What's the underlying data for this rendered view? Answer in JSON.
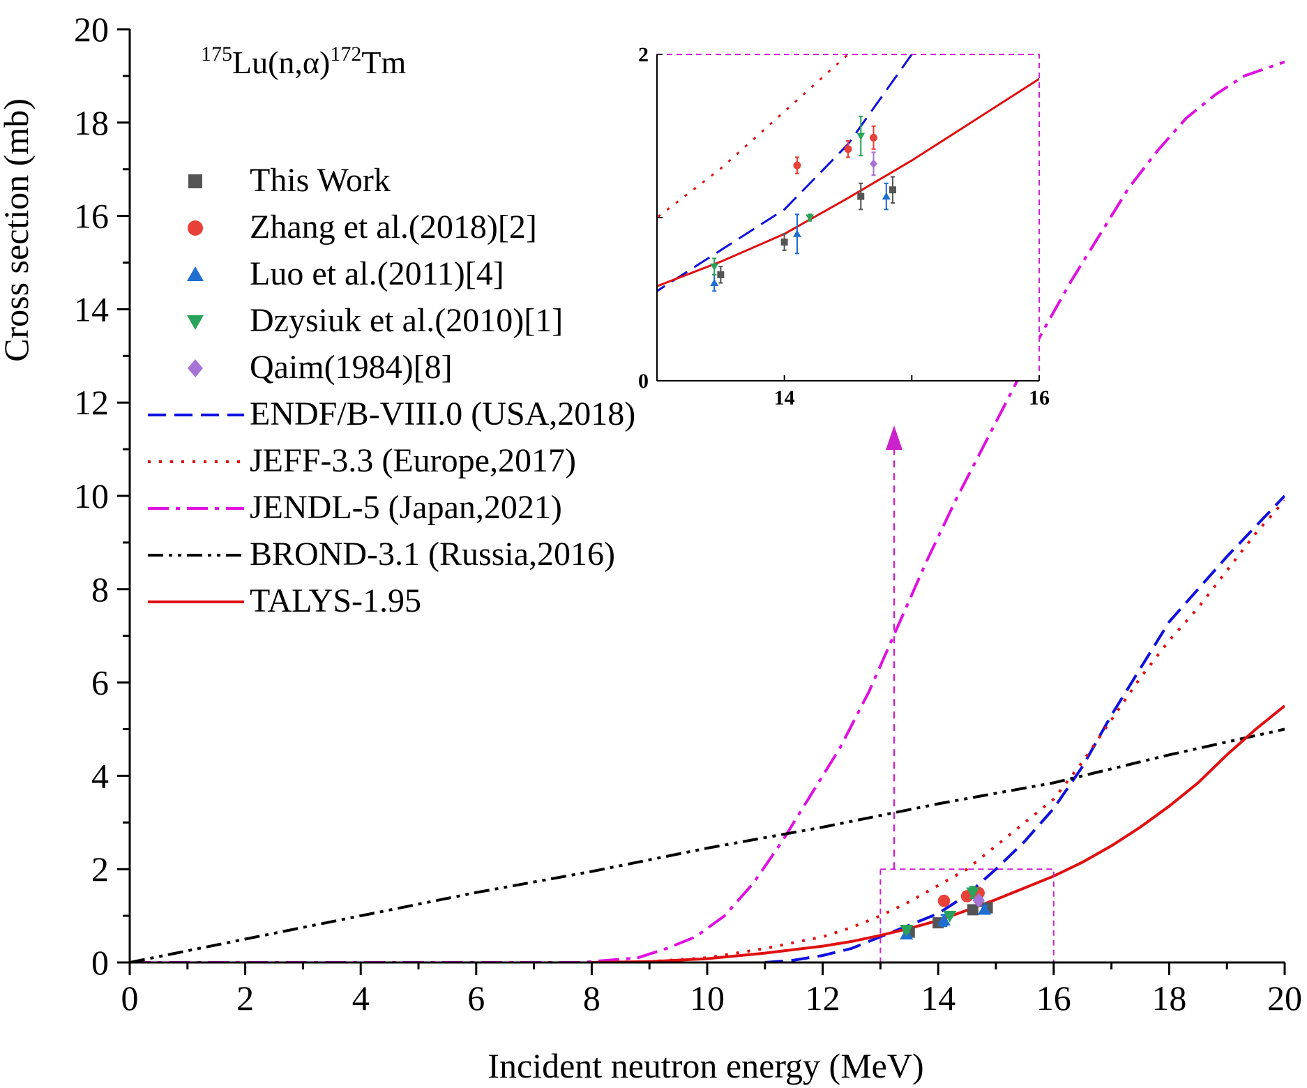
{
  "chart_data": {
    "type": "line",
    "title_parts": {
      "pre_sup": "175",
      "mid1": "Lu(n,",
      "greek": "α",
      "mid2": ")",
      "post_sup": "172",
      "end": "Tm"
    },
    "xlabel": "Incident neutron energy (MeV)",
    "ylabel": "Cross section (mb)",
    "xlim": [
      0,
      20
    ],
    "ylim": [
      0,
      20
    ],
    "x_ticks": [
      0,
      2,
      4,
      6,
      8,
      10,
      12,
      14,
      16,
      18,
      20
    ],
    "y_ticks": [
      0,
      2,
      4,
      6,
      8,
      10,
      12,
      14,
      16,
      18,
      20
    ],
    "colors": {
      "this_work": "#555555",
      "zhang": "#e8413a",
      "luo": "#1f6fd1",
      "dzysiuk": "#2aa35a",
      "qaim": "#a873d6",
      "endf": "#1010e0",
      "jeff": "#e01010",
      "jendl": "#e010e0",
      "brond": "#000000",
      "talys": "#e01010",
      "zoom_box": "#cc22cc"
    },
    "legend": [
      {
        "key": "this_work",
        "label": "This Work",
        "kind": "square"
      },
      {
        "key": "zhang",
        "label": "Zhang et al.(2018)[2]",
        "kind": "circle"
      },
      {
        "key": "luo",
        "label": "Luo et al.(2011)[4]",
        "kind": "triangle-up"
      },
      {
        "key": "dzysiuk",
        "label": "Dzysiuk et al.(2010)[1]",
        "kind": "triangle-down"
      },
      {
        "key": "qaim",
        "label": "Qaim(1984)[8]",
        "kind": "diamond"
      },
      {
        "key": "endf",
        "label": "ENDF/B-VIII.0 (USA,2018)",
        "kind": "line",
        "dash": "dash"
      },
      {
        "key": "jeff",
        "label": "JEFF-3.3 (Europe,2017)",
        "kind": "line",
        "dash": "dot"
      },
      {
        "key": "jendl",
        "label": "JENDL-5 (Japan,2021)",
        "kind": "line",
        "dash": "dashdot"
      },
      {
        "key": "brond",
        "label": "BROND-3.1 (Russia,2016)",
        "kind": "line",
        "dash": "dashdotdot"
      },
      {
        "key": "talys",
        "label": "TALYS-1.95",
        "kind": "line",
        "dash": "solid"
      }
    ],
    "series": [
      {
        "key": "endf",
        "name": "ENDF/B-VIII.0 (USA,2018)",
        "points": [
          [
            11,
            0
          ],
          [
            11.5,
            0.05
          ],
          [
            12,
            0.15
          ],
          [
            12.5,
            0.3
          ],
          [
            13,
            0.55
          ],
          [
            13.5,
            0.8
          ],
          [
            14,
            1.05
          ],
          [
            14.5,
            1.45
          ],
          [
            15,
            2.0
          ],
          [
            15.5,
            2.6
          ],
          [
            16,
            3.3
          ],
          [
            16.5,
            4.2
          ],
          [
            17,
            5.3
          ],
          [
            17.5,
            6.3
          ],
          [
            18,
            7.3
          ],
          [
            18.5,
            8.0
          ],
          [
            19,
            8.7
          ],
          [
            19.5,
            9.35
          ],
          [
            20,
            10.0
          ]
        ]
      },
      {
        "key": "jeff",
        "name": "JEFF-3.3 (Europe,2017)",
        "points": [
          [
            8,
            0
          ],
          [
            9,
            0.02
          ],
          [
            10,
            0.1
          ],
          [
            11,
            0.3
          ],
          [
            12,
            0.55
          ],
          [
            12.5,
            0.75
          ],
          [
            13,
            1.0
          ],
          [
            13.5,
            1.3
          ],
          [
            14,
            1.65
          ],
          [
            14.5,
            2.0
          ],
          [
            15,
            2.5
          ],
          [
            15.5,
            3.0
          ],
          [
            16,
            3.5
          ],
          [
            16.5,
            4.3
          ],
          [
            17,
            5.2
          ],
          [
            17.5,
            6.1
          ],
          [
            18,
            6.9
          ],
          [
            18.5,
            7.6
          ],
          [
            19,
            8.4
          ],
          [
            19.5,
            9.2
          ],
          [
            20,
            9.9
          ]
        ]
      },
      {
        "key": "jendl",
        "name": "JENDL-5 (Japan,2021)",
        "points": [
          [
            0,
            0
          ],
          [
            7.8,
            0
          ],
          [
            8.3,
            0.05
          ],
          [
            8.8,
            0.1
          ],
          [
            9.3,
            0.3
          ],
          [
            9.8,
            0.55
          ],
          [
            10.3,
            1.0
          ],
          [
            10.8,
            1.7
          ],
          [
            11.3,
            2.6
          ],
          [
            11.8,
            3.6
          ],
          [
            12.3,
            4.6
          ],
          [
            12.8,
            5.8
          ],
          [
            13.3,
            7.2
          ],
          [
            13.8,
            8.6
          ],
          [
            14.3,
            9.9
          ],
          [
            14.8,
            11.1
          ],
          [
            15.3,
            12.3
          ],
          [
            15.8,
            13.5
          ],
          [
            16.3,
            14.6
          ],
          [
            16.8,
            15.6
          ],
          [
            17.3,
            16.6
          ],
          [
            17.8,
            17.4
          ],
          [
            18.3,
            18.1
          ],
          [
            18.8,
            18.6
          ],
          [
            19.3,
            19.0
          ],
          [
            20,
            19.3
          ]
        ]
      },
      {
        "key": "brond",
        "name": "BROND-3.1 (Russia,2016)",
        "points": [
          [
            0,
            0
          ],
          [
            2,
            0.5
          ],
          [
            4,
            1.0
          ],
          [
            6,
            1.5
          ],
          [
            8,
            1.95
          ],
          [
            10,
            2.45
          ],
          [
            12,
            2.9
          ],
          [
            14,
            3.4
          ],
          [
            16,
            3.85
          ],
          [
            18,
            4.45
          ],
          [
            20,
            5.0
          ]
        ]
      },
      {
        "key": "talys",
        "name": "TALYS-1.95",
        "points": [
          [
            8,
            0
          ],
          [
            9,
            0.02
          ],
          [
            10,
            0.08
          ],
          [
            11,
            0.2
          ],
          [
            12,
            0.35
          ],
          [
            12.5,
            0.45
          ],
          [
            13,
            0.58
          ],
          [
            13.5,
            0.73
          ],
          [
            14,
            0.9
          ],
          [
            14.5,
            1.12
          ],
          [
            15,
            1.35
          ],
          [
            15.5,
            1.6
          ],
          [
            16,
            1.85
          ],
          [
            16.5,
            2.15
          ],
          [
            17,
            2.5
          ],
          [
            17.5,
            2.9
          ],
          [
            18,
            3.35
          ],
          [
            18.5,
            3.85
          ],
          [
            19,
            4.45
          ],
          [
            19.5,
            5.0
          ],
          [
            20,
            5.5
          ]
        ]
      }
    ],
    "scatter": [
      {
        "key": "this_work",
        "name": "This Work",
        "points": [
          [
            13.5,
            0.65,
            0.05
          ],
          [
            14.0,
            0.85,
            0.05
          ],
          [
            14.6,
            1.13,
            0.08
          ],
          [
            14.85,
            1.17,
            0.08
          ]
        ]
      },
      {
        "key": "zhang",
        "name": "Zhang et al.(2018)[2]",
        "points": [
          [
            14.1,
            1.32,
            0.05
          ],
          [
            14.5,
            1.42,
            0.05
          ],
          [
            14.7,
            1.49,
            0.07
          ]
        ]
      },
      {
        "key": "luo",
        "name": "Luo et al.(2011)[4]",
        "points": [
          [
            13.45,
            0.6,
            0.05
          ],
          [
            14.1,
            0.9,
            0.12
          ],
          [
            14.8,
            1.13,
            0.08
          ]
        ]
      },
      {
        "key": "dzysiuk",
        "name": "Dzysiuk et al.(2010)[1]",
        "points": [
          [
            13.45,
            0.7,
            0.05
          ],
          [
            14.2,
            1.0,
            0.02
          ],
          [
            14.6,
            1.5,
            0.12
          ]
        ]
      },
      {
        "key": "qaim",
        "name": "Qaim(1984)[8]",
        "points": [
          [
            14.7,
            1.33,
            0.07
          ]
        ]
      }
    ],
    "zoom_box": {
      "xlim": [
        13,
        16
      ],
      "ylim": [
        0,
        2
      ]
    },
    "inset": {
      "xlim": [
        13,
        16
      ],
      "ylim": [
        0,
        2
      ],
      "x_ticks": [
        14,
        16
      ],
      "y_ticks": [
        0,
        2
      ]
    }
  }
}
